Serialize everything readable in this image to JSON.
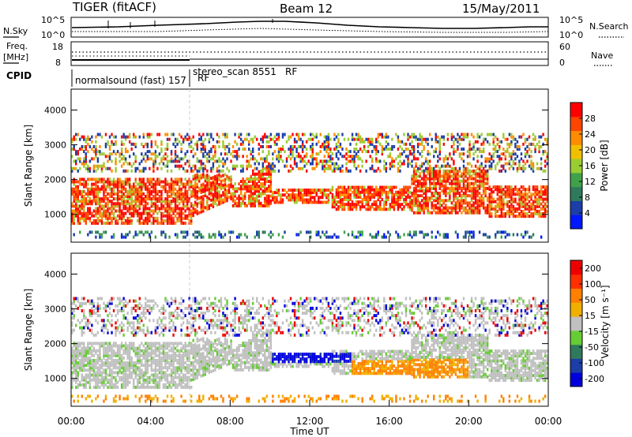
{
  "header": {
    "radar": "TIGER (fitACF)",
    "beam": "Beam 12",
    "date": "15/May/2011"
  },
  "strips": {
    "nsky_label": "N.Sky",
    "nsearch_label": "N.Search",
    "noise_ticks_left": [
      "10^5",
      "10^0"
    ],
    "noise_ticks_right": [
      "10^5",
      "10^0"
    ],
    "freq_label_top": "Freq.",
    "freq_label_bottom": "[MHz]",
    "freq_ticks": [
      "18",
      "8"
    ],
    "nave_label": "Nave",
    "nave_ticks": [
      "60",
      "0"
    ],
    "cpid_label": "CPID",
    "cpid_1": "normalsound (fast) 157",
    "cpid_rf1": "RF",
    "cpid_2": "stereo_scan 8551",
    "cpid_rf2": "RF"
  },
  "chart_data": [
    {
      "type": "heatmap",
      "name": "power",
      "ylabel": "Slant Range [km]",
      "yticks": [
        1000,
        2000,
        3000,
        4000
      ],
      "ylim": [
        200,
        4600
      ],
      "xlim": [
        0,
        24
      ],
      "colorbar_label": "Power [dB]",
      "colorbar_ticks": [
        4,
        8,
        12,
        16,
        20,
        24,
        28
      ],
      "colorbar_range": [
        0,
        32
      ],
      "colors": [
        "#0018ff",
        "#1c3ea8",
        "#2f7a5c",
        "#3fa24a",
        "#9acd32",
        "#f0c000",
        "#ff8c00",
        "#ff4500",
        "#ff0000"
      ]
    },
    {
      "type": "heatmap",
      "name": "velocity",
      "ylabel": "Slant Range [km]",
      "yticks": [
        1000,
        2000,
        3000,
        4000
      ],
      "ylim": [
        200,
        4600
      ],
      "xlim": [
        0,
        24
      ],
      "xticks": [
        "00:00",
        "04:00",
        "08:00",
        "12:00",
        "16:00",
        "20:00",
        "00:00"
      ],
      "xlabel": "Time UT",
      "colorbar_label": "Velocity [m s⁻¹]",
      "colorbar_ticks": [
        "200",
        "100",
        "50",
        "15",
        "-15",
        "-50",
        "-100",
        "-200"
      ],
      "colors": [
        "#0000dd",
        "#1c3ea8",
        "#2f7a5c",
        "#66cc33",
        "#c0c0c0",
        "#f0b000",
        "#ff8000",
        "#ff3000",
        "#ee0000"
      ]
    }
  ]
}
